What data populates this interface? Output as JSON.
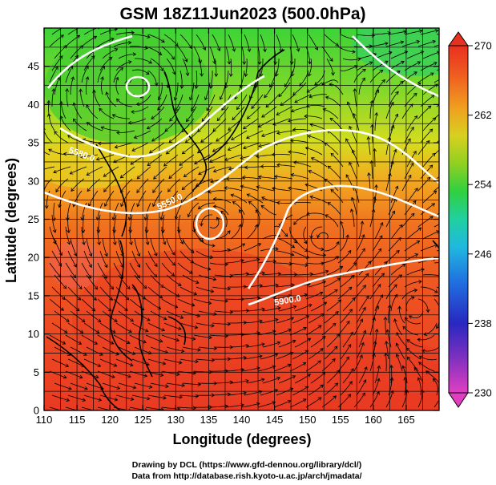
{
  "title": "GSM 18Z11Jun2023 (500.0hPa)",
  "x_axis": {
    "label": "Longitude (degrees)",
    "ticks": [
      "110",
      "115",
      "120",
      "125",
      "130",
      "135",
      "140",
      "145",
      "150",
      "155",
      "160",
      "165"
    ]
  },
  "y_axis": {
    "label": "Latitude  (degrees)",
    "ticks": [
      "0",
      "5",
      "10",
      "15",
      "20",
      "25",
      "30",
      "35",
      "40",
      "45"
    ]
  },
  "colorbar": {
    "ticks": [
      "230",
      "238",
      "246",
      "254",
      "262",
      "270"
    ],
    "colors": [
      "#e040c0",
      "#6030c0",
      "#2020c0",
      "#2070e0",
      "#20b0e0",
      "#20d0a0",
      "#30d040",
      "#80d020",
      "#d0d020",
      "#f0a020",
      "#f06020",
      "#e83020"
    ]
  },
  "contour_labels": [
    "5580.0",
    "5550.0",
    "5900.0"
  ],
  "credits": {
    "line1": "Drawing by DCL (https://www.gfd-dennou.org/library/dcl/)",
    "line2": "Data from http://database.rish.kyoto-u.ac.jp/arch/jmadata/"
  },
  "chart_data": {
    "type": "heatmap",
    "title": "GSM 18Z11Jun2023 (500.0hPa)",
    "xlabel": "Longitude (degrees)",
    "ylabel": "Latitude  (degrees)",
    "xlim": [
      110,
      170
    ],
    "ylim": [
      0,
      50
    ],
    "colorbar_range": [
      230,
      270
    ],
    "colorbar_ticks": [
      230,
      238,
      246,
      254,
      262,
      270
    ],
    "contours": [
      {
        "label": "5580.0"
      },
      {
        "label": "5550.0"
      },
      {
        "label": "5900.0"
      }
    ],
    "grid": true
  }
}
